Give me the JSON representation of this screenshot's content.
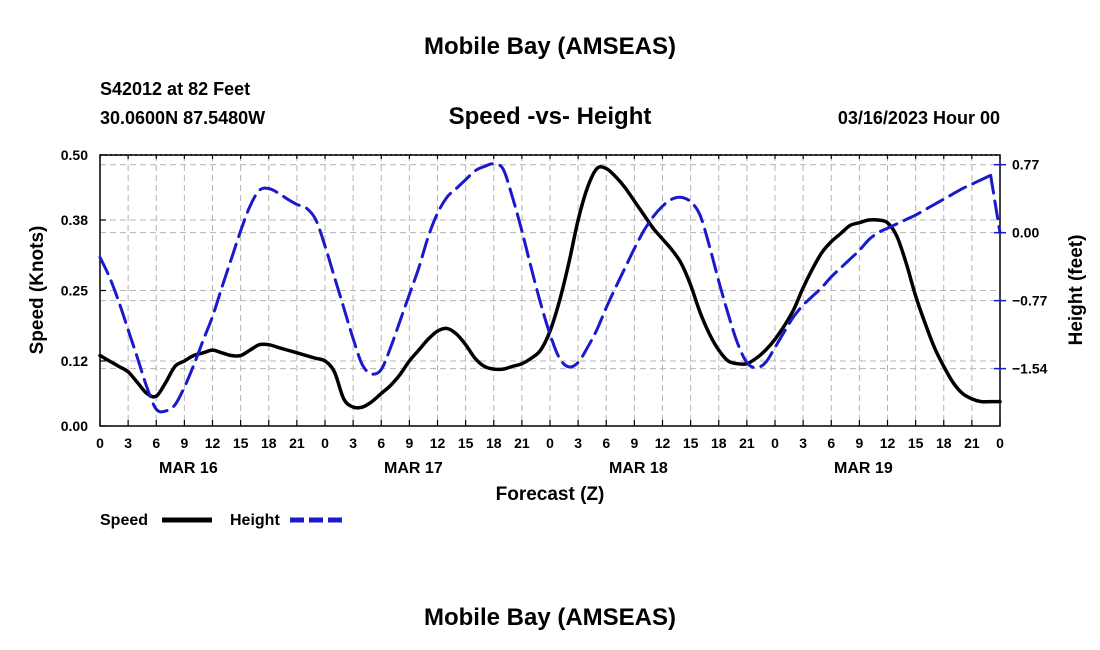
{
  "page": {
    "main_title": "Mobile Bay (AMSEAS)",
    "footer_title": "Mobile Bay (AMSEAS)",
    "station_line1": "S42012 at 82 Feet",
    "station_line2": "30.0600N  87.5480W",
    "chart_title": "Speed -vs- Height",
    "date_line": "03/16/2023 Hour 00"
  },
  "chart_data": {
    "type": "line",
    "title": "Speed -vs- Height",
    "xlabel": "Forecast (Z)",
    "ylabel": "Speed (Knots)",
    "y2label": "Height (feet)",
    "x_range_hours": [
      0,
      96
    ],
    "x_tick_step_hours": 3,
    "x_tick_labels": [
      "0",
      "3",
      "6",
      "9",
      "12",
      "15",
      "18",
      "21",
      "0",
      "3",
      "6",
      "9",
      "12",
      "15",
      "18",
      "21",
      "0",
      "3",
      "6",
      "9",
      "12",
      "15",
      "18",
      "21",
      "0",
      "3",
      "6",
      "9",
      "12",
      "15",
      "18",
      "21",
      "0"
    ],
    "day_labels": [
      {
        "label": "MAR 16",
        "hour": 9
      },
      {
        "label": "MAR 17",
        "hour": 33
      },
      {
        "label": "MAR 18",
        "hour": 57
      },
      {
        "label": "MAR 19",
        "hour": 81
      }
    ],
    "ylim": [
      0,
      0.5
    ],
    "y_ticks": [
      0.0,
      0.12,
      0.25,
      0.38,
      0.5
    ],
    "y_tick_labels": [
      "0.00",
      "0.12",
      "0.25",
      "0.38",
      "0.50"
    ],
    "y2lim": [
      -2.19,
      0.88
    ],
    "y2_ticks": [
      0.77,
      0.0,
      -0.77,
      -1.54
    ],
    "y2_tick_labels": [
      "0.77",
      "0.00",
      "−0.77",
      "−1.54"
    ],
    "grid": true,
    "legend_position": "bottom-left",
    "colors": {
      "speed": "#000000",
      "height": "#1a1acc",
      "grid": "#b4b4b4"
    },
    "series": [
      {
        "name": "Speed",
        "axis": "left",
        "style": "solid",
        "color": "#000000",
        "x": [
          0,
          1,
          2,
          3,
          4,
          5,
          6,
          7,
          8,
          9,
          10,
          11,
          12,
          13,
          14,
          15,
          16,
          17,
          18,
          19,
          20,
          21,
          22,
          23,
          24,
          25,
          26,
          27,
          28,
          29,
          30,
          31,
          32,
          33,
          34,
          35,
          36,
          37,
          38,
          39,
          40,
          41,
          42,
          43,
          44,
          45,
          46,
          47,
          48,
          49,
          50,
          51,
          52,
          53,
          54,
          55,
          56,
          57,
          58,
          59,
          60,
          61,
          62,
          63,
          64,
          65,
          66,
          67,
          68,
          69,
          70,
          71,
          72,
          73,
          74,
          75,
          76,
          77,
          78,
          79,
          80,
          81,
          82,
          83,
          84,
          85,
          86,
          87,
          88,
          89,
          90,
          91,
          92,
          93,
          94,
          95,
          96
        ],
        "values": [
          0.13,
          0.12,
          0.11,
          0.1,
          0.08,
          0.06,
          0.055,
          0.08,
          0.11,
          0.12,
          0.13,
          0.135,
          0.14,
          0.135,
          0.13,
          0.13,
          0.14,
          0.15,
          0.15,
          0.145,
          0.14,
          0.135,
          0.13,
          0.125,
          0.12,
          0.1,
          0.05,
          0.035,
          0.035,
          0.045,
          0.06,
          0.075,
          0.095,
          0.12,
          0.14,
          0.16,
          0.175,
          0.18,
          0.17,
          0.15,
          0.125,
          0.11,
          0.105,
          0.105,
          0.11,
          0.115,
          0.125,
          0.14,
          0.175,
          0.23,
          0.3,
          0.38,
          0.44,
          0.475,
          0.475,
          0.46,
          0.44,
          0.415,
          0.39,
          0.365,
          0.345,
          0.325,
          0.3,
          0.26,
          0.21,
          0.17,
          0.14,
          0.12,
          0.115,
          0.115,
          0.125,
          0.14,
          0.16,
          0.185,
          0.215,
          0.255,
          0.29,
          0.32,
          0.34,
          0.355,
          0.37,
          0.375,
          0.38,
          0.38,
          0.375,
          0.35,
          0.3,
          0.24,
          0.19,
          0.145,
          0.11,
          0.08,
          0.06,
          0.05,
          0.045,
          0.045,
          0.045
        ]
      },
      {
        "name": "Height",
        "axis": "right",
        "style": "dashed",
        "color": "#1a1acc",
        "x": [
          0,
          1,
          2,
          3,
          4,
          5,
          6,
          7,
          8,
          9,
          10,
          11,
          12,
          13,
          14,
          15,
          16,
          17,
          18,
          19,
          20,
          21,
          22,
          23,
          24,
          25,
          26,
          27,
          28,
          29,
          30,
          31,
          32,
          33,
          34,
          35,
          36,
          37,
          38,
          39,
          40,
          41,
          42,
          43,
          44,
          45,
          46,
          47,
          48,
          49,
          50,
          51,
          52,
          53,
          54,
          55,
          56,
          57,
          58,
          59,
          60,
          61,
          62,
          63,
          64,
          65,
          66,
          67,
          68,
          69,
          70,
          71,
          72,
          73,
          74,
          75,
          76,
          77,
          78,
          79,
          80,
          81,
          82,
          83,
          84,
          85,
          86,
          87,
          88,
          89,
          90,
          91,
          92,
          93,
          94,
          95,
          96
        ],
        "values": [
          -0.28,
          -0.5,
          -0.78,
          -1.1,
          -1.42,
          -1.75,
          -2.0,
          -2.02,
          -1.95,
          -1.75,
          -1.5,
          -1.22,
          -0.95,
          -0.62,
          -0.3,
          0.02,
          0.3,
          0.48,
          0.5,
          0.45,
          0.38,
          0.32,
          0.28,
          0.15,
          -0.15,
          -0.5,
          -0.85,
          -1.2,
          -1.5,
          -1.6,
          -1.55,
          -1.3,
          -1.0,
          -0.7,
          -0.4,
          -0.05,
          0.22,
          0.4,
          0.5,
          0.6,
          0.7,
          0.75,
          0.78,
          0.72,
          0.4,
          0.02,
          -0.4,
          -0.8,
          -1.15,
          -1.42,
          -1.52,
          -1.47,
          -1.3,
          -1.1,
          -0.85,
          -0.62,
          -0.4,
          -0.18,
          0.02,
          0.18,
          0.3,
          0.38,
          0.4,
          0.35,
          0.2,
          -0.15,
          -0.55,
          -0.92,
          -1.25,
          -1.47,
          -1.53,
          -1.47,
          -1.3,
          -1.12,
          -0.95,
          -0.82,
          -0.72,
          -0.62,
          -0.5,
          -0.4,
          -0.3,
          -0.2,
          -0.08,
          0.0,
          0.05,
          0.1,
          0.15,
          0.2,
          0.26,
          0.32,
          0.38,
          0.44,
          0.5,
          0.55,
          0.6,
          0.65,
          0.0
        ]
      }
    ]
  }
}
